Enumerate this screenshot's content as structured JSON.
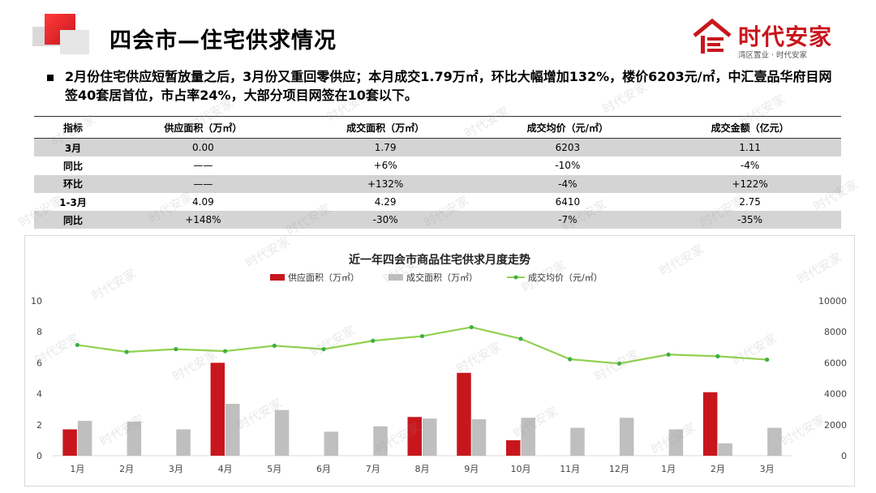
{
  "header": {
    "title": "四会市—住宅供求情况",
    "logo_text": "时代安家",
    "logo_sub": "湾区置业 · 时代安家"
  },
  "summary": "2月份住宅供应短暂放量之后，3月份又重回零供应；本月成交1.79万㎡，环比大幅增加132%，楼价6203元/㎡，中汇壹品华府目网签40套居首位，市占率24%，大部分项目网签在10套以下。",
  "table": {
    "headers": [
      "指标",
      "供应面积（万㎡）",
      "成交面积（万㎡）",
      "成交均价（元/㎡）",
      "成交金额（亿元）"
    ],
    "rows": [
      [
        "3月",
        "0.00",
        "1.79",
        "6203",
        "1.11"
      ],
      [
        "同比",
        "——",
        "+6%",
        "-10%",
        "-4%"
      ],
      [
        "环比",
        "——",
        "+132%",
        "-4%",
        "+122%"
      ],
      [
        "1-3月",
        "4.09",
        "4.29",
        "6410",
        "2.75"
      ],
      [
        "同比",
        "+148%",
        "-30%",
        "-7%",
        "-35%"
      ]
    ]
  },
  "watermark": "时代安家",
  "colors": {
    "supply": "#c8161d",
    "deal": "#bfbfbf",
    "price": "#92d050",
    "price_marker": "#3cb043",
    "shade": "#d4d4d4"
  },
  "chart_data": {
    "type": "bar",
    "title": "近一年四会市商品住宅供求月度走势",
    "categories": [
      "1月",
      "2月",
      "3月",
      "4月",
      "5月",
      "6月",
      "7月",
      "8月",
      "9月",
      "10月",
      "11月",
      "12月",
      "1月",
      "2月",
      "3月"
    ],
    "series": [
      {
        "name": "供应面积（万㎡）",
        "type": "bar",
        "axis": "left",
        "values": [
          1.7,
          0,
          0,
          6.0,
          0,
          0,
          0,
          2.5,
          5.35,
          1.0,
          0,
          0,
          0,
          4.1,
          0
        ]
      },
      {
        "name": "成交面积（万㎡）",
        "type": "bar",
        "axis": "left",
        "values": [
          2.25,
          2.2,
          1.7,
          3.35,
          2.95,
          1.55,
          1.9,
          2.4,
          2.35,
          2.45,
          1.8,
          2.45,
          1.7,
          0.8,
          1.8
        ]
      },
      {
        "name": "成交均价（元/㎡）",
        "type": "line",
        "axis": "right",
        "values": [
          7150,
          6700,
          6880,
          6750,
          7100,
          6880,
          7420,
          7720,
          8300,
          7550,
          6230,
          5950,
          6530,
          6420,
          6200
        ]
      }
    ],
    "y_left": {
      "min": 0,
      "max": 10,
      "ticks": [
        0,
        2,
        4,
        6,
        8,
        10
      ]
    },
    "y_right": {
      "min": 0,
      "max": 10000,
      "ticks": [
        0,
        2000,
        4000,
        6000,
        8000,
        10000
      ]
    },
    "legend": "top",
    "grid": false
  }
}
